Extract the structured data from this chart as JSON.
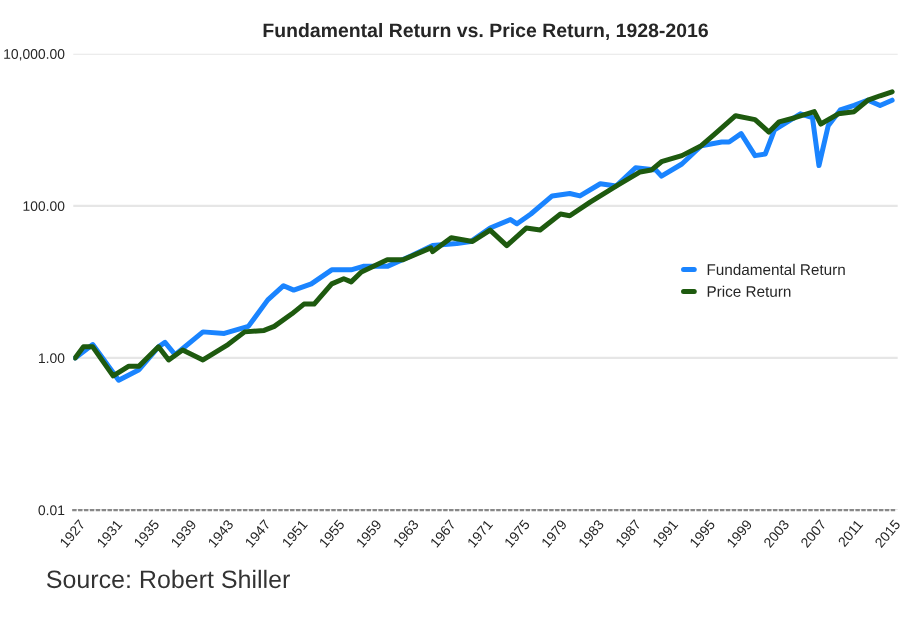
{
  "chart_data": {
    "type": "line",
    "title": "Fundamental Return vs. Price Return, 1928-2016",
    "series": [
      {
        "name": "Fundamental Return",
        "color": "#1a84ff",
        "x": [
          1927.2,
          1929.1,
          1931.9,
          1934.1,
          1936.2,
          1936.9,
          1938,
          1941,
          1943.3,
          1945.9,
          1948,
          1949.7,
          1950.8,
          1952.7,
          1954.9,
          1957,
          1958.3,
          1960.9,
          1963.5,
          1965.8,
          1968.4,
          1969.9,
          1972,
          1974.2,
          1974.9,
          1976.4,
          1978.7,
          1980.6,
          1981.7,
          1983.9,
          1985.6,
          1987.7,
          1989.9,
          1990.5,
          1992.7,
          1994.8,
          1997,
          1997.8,
          1999.1,
          2000.6,
          2001.7,
          2002.7,
          2005.5,
          2006.8,
          2007.5,
          2008.5,
          2009.8,
          2011.3,
          2012.8,
          2014.1,
          2015.4
        ],
        "values": [
          1.0,
          1.5,
          0.51,
          0.7,
          1.4,
          1.6,
          1.1,
          2.2,
          2.1,
          2.6,
          5.8,
          8.9,
          7.8,
          9.4,
          14.4,
          14.4,
          16,
          16,
          22,
          30,
          32,
          34,
          51,
          66,
          58,
          78,
          135,
          145,
          135,
          195,
          182,
          316,
          295,
          246,
          355,
          617,
          692,
          692,
          891,
          457,
          479,
          1000,
          1620,
          1440,
          338,
          1130,
          1820,
          2090,
          2450,
          2090,
          2450
        ]
      },
      {
        "name": "Price Return",
        "color": "#1e5a0f",
        "x": [
          1927.2,
          1928.1,
          1929.1,
          1931.3,
          1933,
          1934.1,
          1936.2,
          1937.3,
          1938.8,
          1941,
          1943.7,
          1945.5,
          1947.6,
          1948.7,
          1950.6,
          1951.9,
          1953,
          1954.9,
          1956.2,
          1957,
          1958.1,
          1960.9,
          1962.6,
          1965.6,
          1965.8,
          1967.8,
          1970.1,
          1972,
          1973.8,
          1975.9,
          1977.4,
          1979.6,
          1980.6,
          1982.8,
          1985.6,
          1988.2,
          1989.4,
          1990.5,
          1992.7,
          1994.8,
          1996.3,
          1998.5,
          2000.6,
          2002.1,
          2003.2,
          2004.9,
          2007,
          2007.7,
          2009.6,
          2011.3,
          2012.8,
          2014.1,
          2015.4
        ],
        "values": [
          1.0,
          1.4,
          1.4,
          0.58,
          0.78,
          0.78,
          1.4,
          0.94,
          1.27,
          0.94,
          1.5,
          2.2,
          2.3,
          2.6,
          3.8,
          5.1,
          5.1,
          9.4,
          11,
          10,
          13.5,
          19.5,
          19.5,
          28,
          25,
          38,
          34,
          48,
          30,
          51,
          48,
          78,
          74,
          112,
          182,
          279,
          295,
          380,
          457,
          617,
          891,
          1530,
          1360,
          933,
          1270,
          1440,
          1730,
          1190,
          1620,
          1730,
          2450,
          2800,
          3160
        ]
      }
    ],
    "log": "y",
    "xlim": [
      1927,
      2016
    ],
    "xticks": [
      1927,
      1931,
      1935,
      1939,
      1943,
      1947,
      1951,
      1955,
      1959,
      1963,
      1967,
      1971,
      1975,
      1979,
      1983,
      1987,
      1991,
      1995,
      1999,
      2003,
      2007,
      2011,
      2015
    ],
    "ylim": [
      0.01,
      10000
    ],
    "yticks": [
      {
        "value": 0.01,
        "label": "0.01"
      },
      {
        "value": 1,
        "label": "1.00"
      },
      {
        "value": 100,
        "label": "100.00"
      },
      {
        "value": 10000,
        "label": "10,000.00"
      }
    ],
    "grid": "y",
    "legend": "right",
    "marker": "none",
    "line_style": "solid",
    "annotations": [
      "Source: Robert Shiller"
    ]
  }
}
